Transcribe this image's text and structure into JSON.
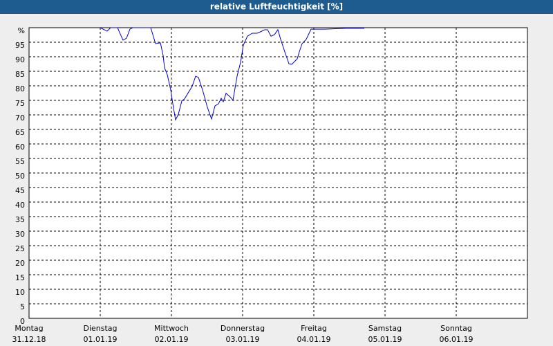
{
  "chart_data": {
    "type": "line",
    "title": "relative Luftfeuchtigkeit [%]",
    "xlim": [
      0,
      7
    ],
    "ylim": [
      0,
      100
    ],
    "xticks": [
      {
        "value": 0,
        "label": "Montag",
        "sublabel": "31.12.18"
      },
      {
        "value": 1,
        "label": "Dienstag",
        "sublabel": "01.01.19"
      },
      {
        "value": 2,
        "label": "Mittwoch",
        "sublabel": "02.01.19"
      },
      {
        "value": 3,
        "label": "Donnerstag",
        "sublabel": "03.01.19"
      },
      {
        "value": 4,
        "label": "Freitag",
        "sublabel": "04.01.19"
      },
      {
        "value": 5,
        "label": "Samstag",
        "sublabel": "05.01.19"
      },
      {
        "value": 6,
        "label": "Sonntag",
        "sublabel": "06.01.19"
      }
    ],
    "yticks": [
      0,
      5,
      10,
      15,
      20,
      25,
      30,
      35,
      40,
      45,
      50,
      55,
      60,
      65,
      70,
      75,
      80,
      85,
      90,
      95,
      {
        "value": 100,
        "label": "%"
      }
    ],
    "grid": true,
    "x": [
      1.0,
      1.097,
      1.146,
      1.243,
      1.32,
      1.369,
      1.417,
      1.456,
      1.709,
      1.777,
      1.845,
      1.883,
      1.903,
      1.942,
      1.99,
      2.019,
      2.058,
      2.097,
      2.146,
      2.184,
      2.243,
      2.291,
      2.34,
      2.379,
      2.437,
      2.505,
      2.563,
      2.612,
      2.66,
      2.699,
      2.728,
      2.767,
      2.825,
      2.864,
      2.922,
      2.971,
      3.01,
      3.068,
      3.136,
      3.204,
      3.252,
      3.311,
      3.35,
      3.398,
      3.447,
      3.495,
      3.534,
      3.592,
      3.65,
      3.689,
      3.767,
      3.796,
      3.835,
      3.893,
      3.961,
      4.155,
      4.447,
      4.709
    ],
    "series": [
      {
        "color": "#0000cc",
        "values": [
          100,
          98.8,
          100,
          100,
          95.7,
          96.4,
          99.5,
          100,
          100,
          94.5,
          94.8,
          90.5,
          86.2,
          83.8,
          78.6,
          73.8,
          68.3,
          70.2,
          74.8,
          75.5,
          77.9,
          79.8,
          83.3,
          82.9,
          78.6,
          72.6,
          68.6,
          73.1,
          73.8,
          75.7,
          74.5,
          77.4,
          76.2,
          75.0,
          83.3,
          88.1,
          94.0,
          97.1,
          98.1,
          98.1,
          98.6,
          99.3,
          99.3,
          97.1,
          97.6,
          99.3,
          96.0,
          91.7,
          87.6,
          87.4,
          89.3,
          91.7,
          94.5,
          96.0,
          99.5,
          99.5,
          99.8,
          99.8
        ]
      }
    ]
  }
}
